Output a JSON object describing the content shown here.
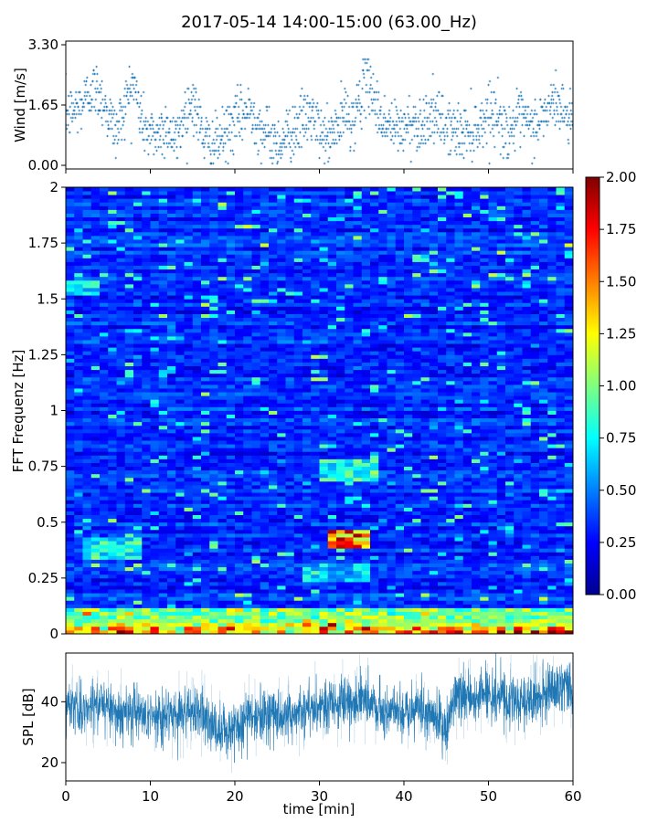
{
  "title": "2017-05-14 14:00-15:00 (63.00_Hz)",
  "colors": {
    "series": "#1f77b4",
    "axes": "#000000",
    "colormap": "jet",
    "background": "#ffffff"
  },
  "chart_data": [
    {
      "type": "scatter",
      "name": "wind",
      "xlabel": "",
      "ylabel": "Wind [m/s]",
      "xlim": [
        0,
        60
      ],
      "ylim": [
        0,
        3.3
      ],
      "yticks": [
        "0.00",
        "1.65",
        "3.30"
      ],
      "note": "Wind speed samples; dense scatter of small '+' markers, values quantized (~0.1 m/s steps).",
      "profile_x": [
        0,
        1,
        2,
        3,
        4,
        5,
        6,
        7,
        8,
        9,
        10,
        11,
        12,
        13,
        14,
        15,
        16,
        17,
        18,
        19,
        20,
        21,
        22,
        23,
        24,
        25,
        26,
        27,
        28,
        29,
        30,
        31,
        32,
        33,
        34,
        35,
        36,
        37,
        38,
        39,
        40,
        41,
        42,
        43,
        44,
        45,
        46,
        47,
        48,
        49,
        50,
        51,
        52,
        53,
        54,
        55,
        56,
        57,
        58,
        59,
        60
      ],
      "profile_y": [
        1.4,
        1.5,
        1.7,
        2.1,
        2.0,
        1.4,
        0.9,
        1.7,
        2.3,
        1.2,
        0.8,
        0.9,
        1.1,
        0.6,
        1.4,
        1.8,
        1.0,
        0.5,
        0.6,
        0.9,
        1.2,
        1.4,
        1.5,
        1.0,
        0.8,
        0.6,
        0.8,
        1.0,
        1.2,
        1.4,
        0.9,
        0.7,
        1.0,
        1.4,
        1.2,
        2.0,
        2.3,
        1.4,
        1.1,
        1.0,
        1.0,
        1.2,
        1.1,
        1.4,
        1.2,
        1.1,
        0.9,
        0.9,
        1.0,
        1.1,
        1.5,
        1.4,
        0.9,
        1.1,
        1.3,
        1.0,
        1.2,
        1.5,
        1.8,
        1.4,
        1.3
      ]
    },
    {
      "type": "heatmap",
      "name": "spectrogram",
      "xlabel": "",
      "ylabel": "FFT Frequenz [Hz]",
      "xlim": [
        0,
        60
      ],
      "ylim": [
        0,
        2
      ],
      "yticks": [
        "0",
        "0.25",
        "0.5",
        "0.75",
        "1",
        "1.25",
        "1.5",
        "1.75",
        "2"
      ],
      "colorbar": {
        "min": 0.0,
        "max": 2.0,
        "ticks": [
          "0.00",
          "0.25",
          "0.50",
          "0.75",
          "1.00",
          "1.25",
          "1.50",
          "1.75",
          "2.00"
        ],
        "colormap": "jet"
      },
      "time_columns": 60,
      "frequency_rows": 120,
      "note": "Background amplitude mostly 0.1-0.5; strong energy near 0-0.12 Hz; hot spots around t=31-36 min at 0.38-0.45 Hz and ~0.7 Hz; band ~0.35-0.45 Hz at t=2-9 min.",
      "features": [
        {
          "t": [
            0,
            60
          ],
          "f": [
            0,
            0.12
          ],
          "level": 1.2
        },
        {
          "t": [
            31,
            36
          ],
          "f": [
            0.38,
            0.46
          ],
          "level": 1.9
        },
        {
          "t": [
            30,
            37
          ],
          "f": [
            0.68,
            0.78
          ],
          "level": 1.0
        },
        {
          "t": [
            2,
            9
          ],
          "f": [
            0.33,
            0.44
          ],
          "level": 1.0
        },
        {
          "t": [
            0,
            4
          ],
          "f": [
            1.52,
            1.58
          ],
          "level": 0.9
        },
        {
          "t": [
            28,
            36
          ],
          "f": [
            0.24,
            0.32
          ],
          "level": 0.8
        }
      ]
    },
    {
      "type": "line",
      "name": "spl",
      "xlabel": "time [min]",
      "ylabel": "SPL [dB]",
      "xlim": [
        0,
        60
      ],
      "ylim": [
        14,
        56
      ],
      "xticks": [
        "0",
        "10",
        "20",
        "30",
        "40",
        "50",
        "60"
      ],
      "yticks": [
        "20",
        "40"
      ],
      "note": "Dense sound pressure level trace; mean follows envelope, spread ~±6 dB.",
      "x": [
        0,
        2,
        4,
        6,
        8,
        10,
        12,
        14,
        16,
        18,
        19,
        20,
        22,
        24,
        26,
        28,
        30,
        32,
        34,
        36,
        38,
        40,
        42,
        44,
        45,
        46,
        48,
        50,
        52,
        54,
        56,
        58,
        59,
        60
      ],
      "y": [
        40,
        38,
        40,
        37,
        37,
        35,
        35,
        36,
        36,
        30,
        28,
        32,
        35,
        36,
        35,
        37,
        39,
        39,
        41,
        40,
        37,
        37,
        38,
        34,
        30,
        42,
        42,
        43,
        41,
        40,
        42,
        45,
        46,
        40
      ]
    }
  ]
}
